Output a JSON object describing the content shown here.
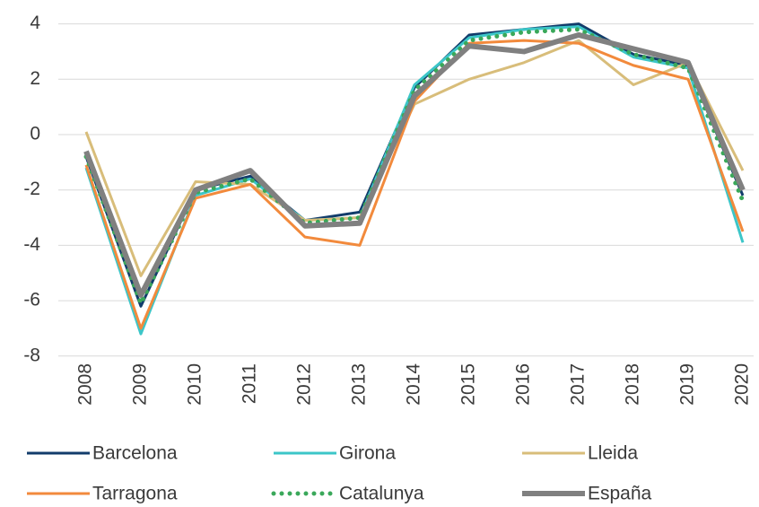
{
  "chart_data": {
    "type": "line",
    "categories": [
      "2008",
      "2009",
      "2010",
      "2011",
      "2012",
      "2013",
      "2014",
      "2015",
      "2016",
      "2017",
      "2018",
      "2019",
      "2020"
    ],
    "series": [
      {
        "name": "Barcelona",
        "color": "#123c6b",
        "width": 3,
        "dotted": false,
        "values": [
          -0.8,
          -6.2,
          -2.0,
          -1.5,
          -3.1,
          -2.8,
          1.7,
          3.6,
          3.8,
          4.0,
          2.9,
          2.5,
          -2.2
        ]
      },
      {
        "name": "Girona",
        "color": "#3cc6c8",
        "width": 3,
        "dotted": false,
        "values": [
          -1.2,
          -7.2,
          -2.2,
          -1.6,
          -3.1,
          -3.0,
          1.8,
          3.5,
          3.8,
          3.9,
          2.8,
          2.4,
          -3.9
        ]
      },
      {
        "name": "Lleida",
        "color": "#d8bd7a",
        "width": 3,
        "dotted": false,
        "values": [
          0.1,
          -5.1,
          -1.7,
          -1.8,
          -3.1,
          -3.0,
          1.1,
          2.0,
          2.6,
          3.4,
          1.8,
          2.6,
          -1.3
        ]
      },
      {
        "name": "Tarragona",
        "color": "#f28a3c",
        "width": 3,
        "dotted": false,
        "values": [
          -1.1,
          -7.0,
          -2.3,
          -1.8,
          -3.7,
          -4.0,
          1.2,
          3.3,
          3.4,
          3.3,
          2.5,
          2.0,
          -3.5
        ]
      },
      {
        "name": "Catalunya",
        "color": "#3aa85a",
        "width": 5,
        "dotted": true,
        "values": [
          -0.8,
          -6.1,
          -2.1,
          -1.6,
          -3.2,
          -3.0,
          1.6,
          3.4,
          3.7,
          3.8,
          2.9,
          2.4,
          -2.4
        ]
      },
      {
        "name": "España",
        "color": "#808080",
        "width": 6,
        "dotted": false,
        "values": [
          -0.6,
          -5.8,
          -2.0,
          -1.3,
          -3.3,
          -3.2,
          1.4,
          3.2,
          3.0,
          3.6,
          3.1,
          2.6,
          -2.0
        ]
      }
    ],
    "ylim": [
      -8,
      4
    ],
    "yticks": [
      -8,
      -6,
      -4,
      -2,
      0,
      2,
      4
    ],
    "grid": true,
    "legend": "bottom"
  }
}
